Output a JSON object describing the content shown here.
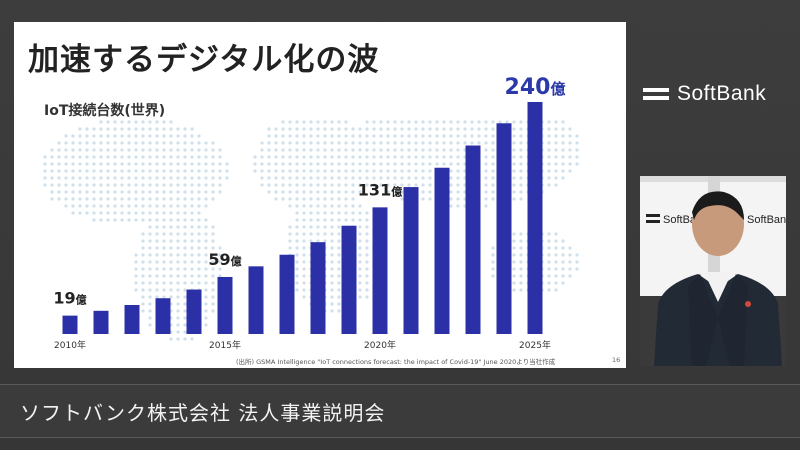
{
  "slide": {
    "title": "加速するデジタル化の波",
    "subtitle": "IoT接続台数(世界)",
    "source": "(出所) GSMA Intelligence \"IoT connections forecast: the impact of Covid-19\" June 2020より当社作成",
    "page_number": "16"
  },
  "brand": {
    "name": "SoftBank",
    "backdrop_name": "SoftBank"
  },
  "caption": {
    "text": "ソフトバンク株式会社 法人事業説明会"
  },
  "colors": {
    "bar": "#2b30a6",
    "callout_accent": "#2b3aa8",
    "label": "#222222"
  },
  "chart_data": {
    "type": "bar",
    "title": "IoT接続台数(世界)",
    "x": [
      2010,
      2011,
      2012,
      2013,
      2014,
      2015,
      2016,
      2017,
      2018,
      2019,
      2020,
      2021,
      2022,
      2023,
      2024,
      2025
    ],
    "values": [
      19,
      24,
      30,
      37,
      46,
      59,
      70,
      82,
      95,
      112,
      131,
      152,
      172,
      195,
      218,
      240
    ],
    "unit": "億",
    "tick_labels": [
      {
        "x": 2010,
        "label": "2010年"
      },
      {
        "x": 2015,
        "label": "2015年"
      },
      {
        "x": 2020,
        "label": "2020年"
      },
      {
        "x": 2025,
        "label": "2025年"
      }
    ],
    "callouts": [
      {
        "x": 2010,
        "value": "19",
        "unit": "億"
      },
      {
        "x": 2015,
        "value": "59",
        "unit": "億"
      },
      {
        "x": 2020,
        "value": "131",
        "unit": "億"
      },
      {
        "x": 2025,
        "value": "240",
        "unit": "億",
        "highlight": true
      }
    ],
    "ylim": [
      0,
      240
    ],
    "grid": false,
    "legend": "none"
  }
}
